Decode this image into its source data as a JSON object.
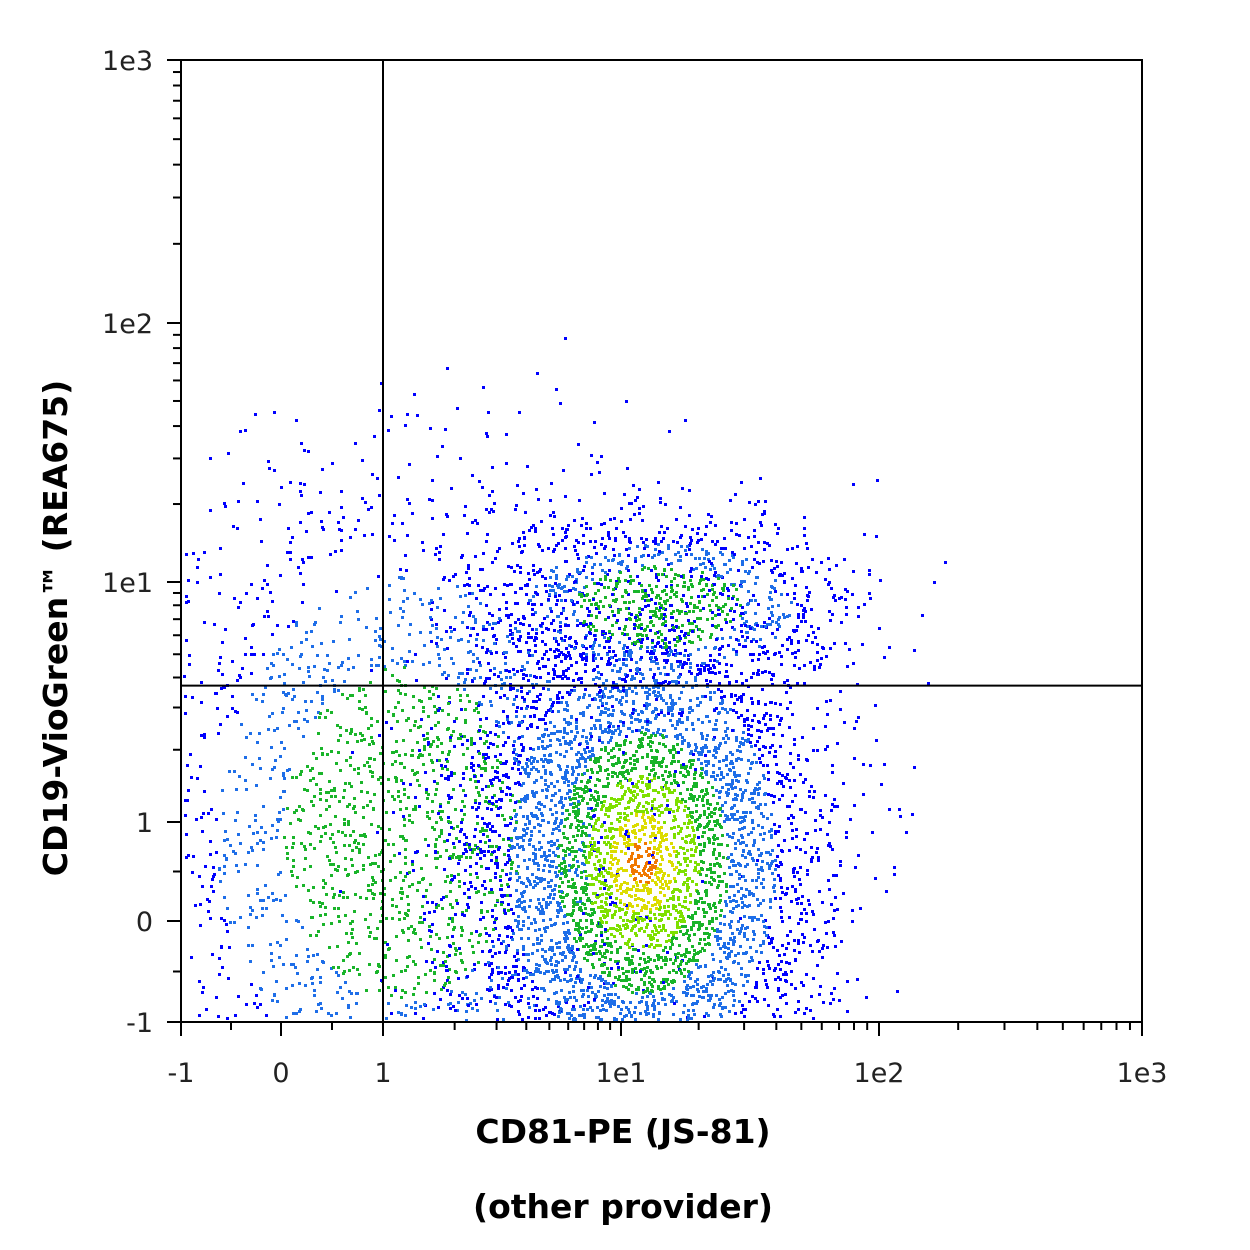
{
  "chart_data": {
    "type": "scatter",
    "subtype": "flow-cytometry-density-dot-plot",
    "xlabel": "CD81-PE (JS-81)",
    "xlabel_line2": "(other provider)",
    "ylabel": "CD19-VioGreen™ (REA675)",
    "x_scale": "biexponential",
    "y_scale": "biexponential",
    "xlim": [
      -1,
      1000
    ],
    "ylim": [
      -1,
      1000
    ],
    "x_ticks": [
      {
        "value": -1,
        "label": "-1"
      },
      {
        "value": 0,
        "label": "0"
      },
      {
        "value": 1,
        "label": "1"
      },
      {
        "value": 10,
        "label": "1e1"
      },
      {
        "value": 100,
        "label": "1e2"
      },
      {
        "value": 1000,
        "label": "1e3"
      }
    ],
    "y_ticks": [
      {
        "value": -1,
        "label": "-1"
      },
      {
        "value": 0,
        "label": "0"
      },
      {
        "value": 1,
        "label": "1"
      },
      {
        "value": 10,
        "label": "1e1"
      },
      {
        "value": 100,
        "label": "1e2"
      },
      {
        "value": 1000,
        "label": "1e3"
      }
    ],
    "quadrant_gate": {
      "x": 1.0,
      "y": 3.7
    },
    "populations": [
      {
        "x_center": 12,
        "y_center": 0.6,
        "x_spread": 0.25,
        "y_spread": 0.55,
        "weight": 0.62
      },
      {
        "x_center": 1.2,
        "y_center": 0.9,
        "x_spread": 0.35,
        "y_spread": 0.7,
        "weight": 0.28
      },
      {
        "x_center": 14,
        "y_center": 8.0,
        "x_spread": 0.25,
        "y_spread": 0.17,
        "weight": 0.1
      }
    ],
    "density_colors": [
      "#0000ff",
      "#1e6ee8",
      "#19b42a",
      "#7ee000",
      "#dcdc00",
      "#f07800"
    ],
    "grid": false,
    "legend": "none"
  }
}
